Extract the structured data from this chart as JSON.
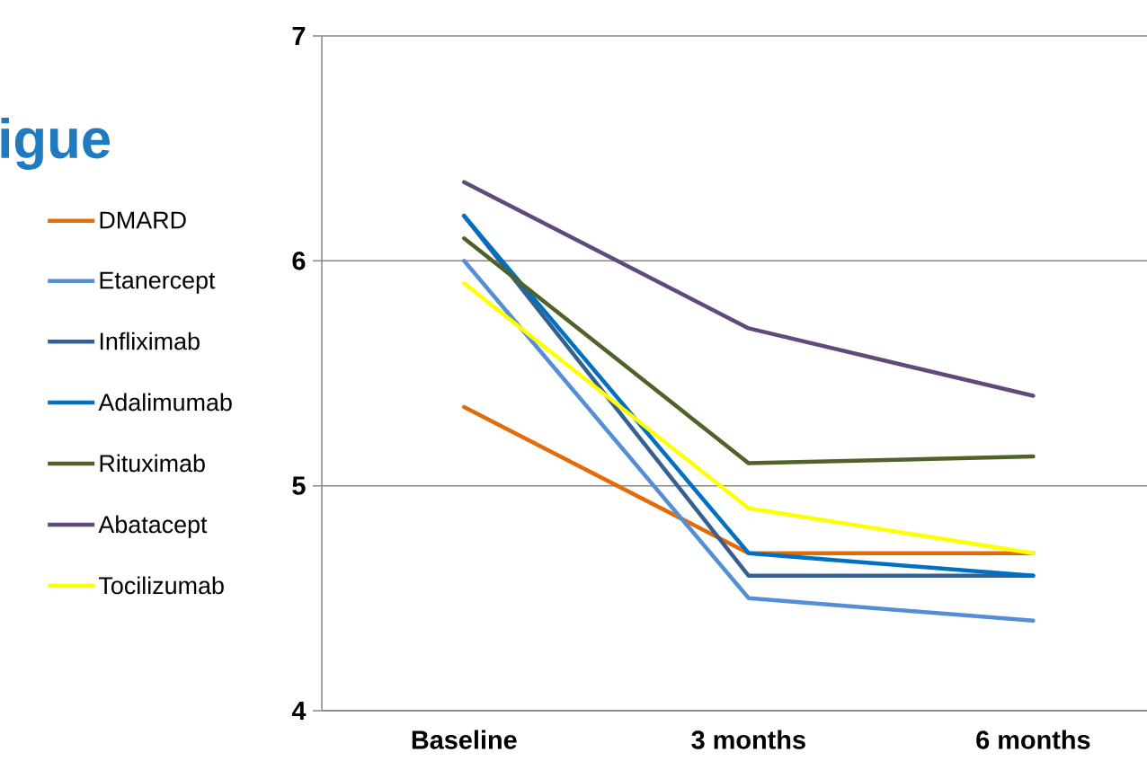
{
  "chart_data": {
    "type": "line",
    "title": "igue",
    "categories": [
      "Baseline",
      "3 months",
      "6 months"
    ],
    "series": [
      {
        "name": "DMARD",
        "color": "#e36c09",
        "values": [
          5.35,
          4.7,
          4.7
        ]
      },
      {
        "name": "Etanercept",
        "color": "#558ed5",
        "values": [
          6.0,
          4.5,
          4.4
        ]
      },
      {
        "name": "Infliximab",
        "color": "#376092",
        "values": [
          6.2,
          4.6,
          4.6
        ]
      },
      {
        "name": "Adalimumab",
        "color": "#0070c0",
        "values": [
          6.2,
          4.7,
          4.6
        ]
      },
      {
        "name": "Rituximab",
        "color": "#4f6228",
        "values": [
          6.1,
          5.1,
          5.13
        ]
      },
      {
        "name": "Abatacept",
        "color": "#604a7b",
        "values": [
          6.35,
          5.7,
          5.4
        ]
      },
      {
        "name": "Tocilizumab",
        "color": "#ffff00",
        "values": [
          5.9,
          4.9,
          4.7
        ]
      }
    ],
    "ylim": [
      4,
      7
    ],
    "yticks": [
      4,
      5,
      6,
      7
    ],
    "grid": "y",
    "legend": "left"
  }
}
